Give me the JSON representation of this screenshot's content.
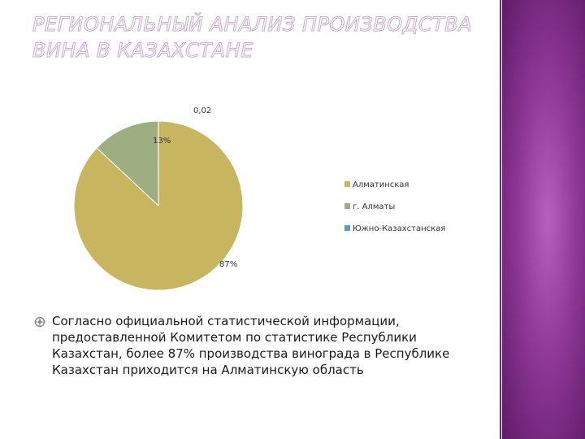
{
  "title": "РЕГИОНАЛЬНЫЙ АНАЛИЗ ПРОИЗВОДСТВА ВИНА В КАЗАХСТАНЕ",
  "chart_data": {
    "type": "pie",
    "categories": [
      "Алматинская",
      "г. Алматы",
      "Южно-Казахстанская"
    ],
    "values": [
      87,
      13,
      0.02
    ],
    "data_labels": [
      "87%",
      "13%",
      "0,02"
    ],
    "colors": [
      "#c8b560",
      "#9fae80",
      "#5b9bc0"
    ],
    "legend_position": "right"
  },
  "bullet": {
    "icon": "target-bullet-icon",
    "text": "Согласно официальной статистической информации, предоставленной Комитетом по статистике Республики Казахстан, более 87% производства винограда в Республике Казахстан приходится на Алматинскую область"
  },
  "theme": {
    "title_outline": "#c9aecd",
    "panel_color": "#8f3898",
    "bullet_color": "#8a8a8a"
  }
}
